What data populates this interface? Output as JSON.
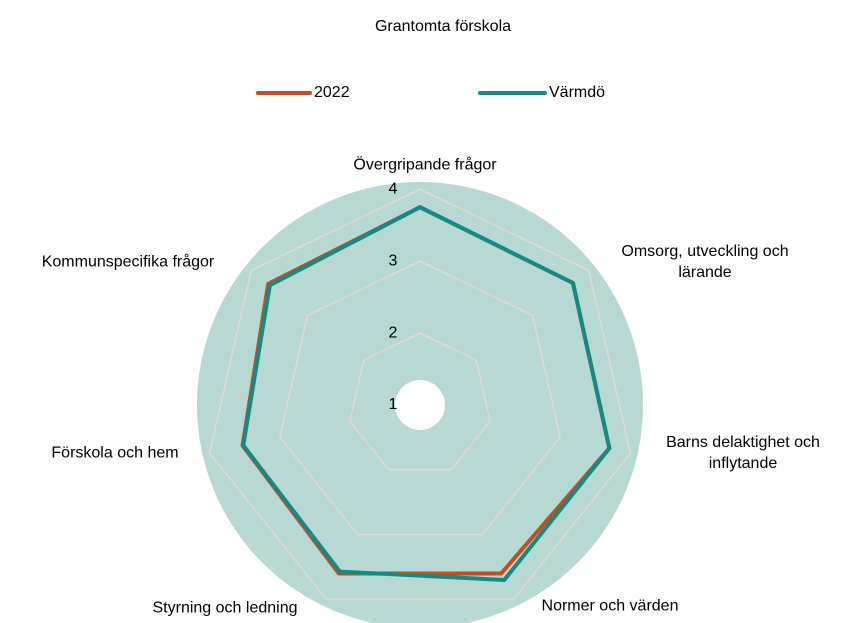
{
  "chart_data": {
    "type": "radar",
    "title": "Grantomta förskola",
    "categories": [
      "Övergripande frågor",
      "Omsorg, utveckling och lärande",
      "Barns delaktighet och inflytande",
      "Normer och värden",
      "Styrning och ledning",
      "Förskola och hem",
      "Kommunspecifika frågor"
    ],
    "series": [
      {
        "name": "2022",
        "color": "#c0501f",
        "values": [
          3.75,
          3.72,
          3.7,
          3.6,
          3.6,
          3.53,
          3.7
        ]
      },
      {
        "name": "Värmdö",
        "color": "#138a84",
        "values": [
          3.75,
          3.72,
          3.7,
          3.7,
          3.57,
          3.52,
          3.67
        ]
      }
    ],
    "ylim": [
      1,
      4.1
    ],
    "yticks": [
      1,
      2,
      3,
      4
    ],
    "grid": true,
    "legend": "top"
  }
}
